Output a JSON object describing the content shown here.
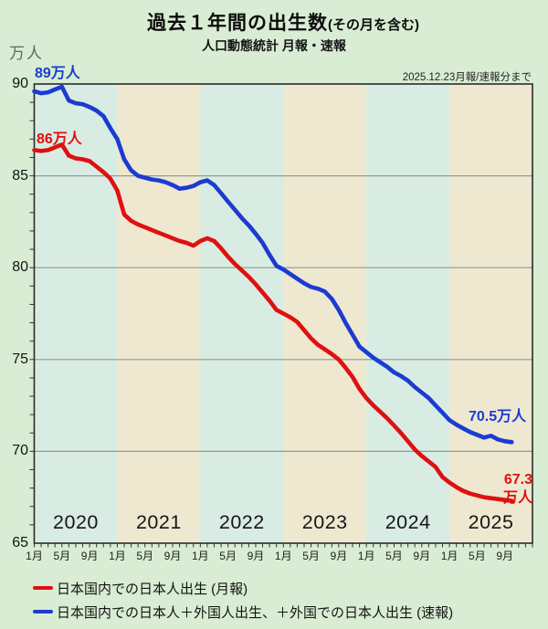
{
  "header": {
    "title_main": "過去１年間の出生数",
    "title_paren": "(その月を含む)",
    "subtitle": "人口動態統計 月報・速報",
    "note_date": "2025.12.23月報/速報分まで",
    "attribution": "作図：小坂純一@kosajun1"
  },
  "y_axis": {
    "unit_label": "万人"
  },
  "annotations": {
    "blue_start": "89万人",
    "red_start": "86万人",
    "blue_end": "70.5万人",
    "red_end_value": "67.3",
    "red_end_unit": "万人"
  },
  "legend": {
    "items": [
      {
        "label": "日本国内での日本人出生 (月報)",
        "color": "#e01010"
      },
      {
        "label": "日本国内での日本人＋外国人出生、＋外国での日本人出生 (速報)",
        "color": "#1b3bd1"
      }
    ]
  },
  "colors": {
    "background": "#d8edd3",
    "band_teal": "#d9ece3",
    "band_beige": "#efe8d1",
    "gridline": "#8f9a93",
    "frame": "#2b2b2b",
    "tick": "#333333",
    "red_line": "#e01010",
    "blue_line": "#1b3bd1"
  },
  "chart_data": {
    "type": "line",
    "title": "過去１年間の出生数(その月を含む)",
    "subtitle": "人口動態統計 月報・速報",
    "y_unit": "万人",
    "ylim": [
      65,
      90
    ],
    "y_tick_labels": [
      90,
      85,
      80,
      75,
      70,
      65
    ],
    "y_gridlines": [
      85,
      80,
      75,
      70
    ],
    "x_start": "2020-01",
    "x_end": "2025-10",
    "x_unit": "month",
    "years": [
      "2020",
      "2021",
      "2022",
      "2023",
      "2024",
      "2025"
    ],
    "month_tick_labels": [
      "1月",
      "5月",
      "9月"
    ],
    "month_tick_offsets": [
      0,
      4,
      8
    ],
    "band_colors_by_year": [
      "teal",
      "beige",
      "teal",
      "beige",
      "teal",
      "beige"
    ],
    "legend_position": "bottom-left",
    "series": [
      {
        "name": "日本国内での日本人出生 (月報)",
        "color": "#e01010",
        "start_label": "86万人",
        "end_label": "67.3万人",
        "values": [
          86.4,
          86.35,
          86.4,
          86.55,
          86.7,
          86.1,
          85.95,
          85.9,
          85.8,
          85.5,
          85.2,
          84.85,
          84.2,
          82.9,
          82.55,
          82.35,
          82.2,
          82.05,
          81.9,
          81.75,
          81.6,
          81.45,
          81.35,
          81.2,
          81.45,
          81.6,
          81.45,
          81.05,
          80.6,
          80.2,
          79.85,
          79.5,
          79.1,
          78.65,
          78.2,
          77.7,
          77.5,
          77.3,
          77.05,
          76.6,
          76.15,
          75.8,
          75.55,
          75.3,
          75.0,
          74.55,
          74.05,
          73.4,
          72.9,
          72.5,
          72.15,
          71.8,
          71.4,
          71.0,
          70.55,
          70.1,
          69.75,
          69.45,
          69.15,
          68.6,
          68.3,
          68.05,
          67.85,
          67.7,
          67.6,
          67.5,
          67.45,
          67.4,
          67.35,
          67.3
        ]
      },
      {
        "name": "日本国内での日本人＋外国人出生、＋外国での日本人出生 (速報)",
        "color": "#1b3bd1",
        "start_label": "89万人",
        "end_label": "70.5万人",
        "values": [
          89.6,
          89.5,
          89.55,
          89.7,
          89.85,
          89.1,
          88.95,
          88.9,
          88.75,
          88.55,
          88.25,
          87.6,
          87.0,
          85.9,
          85.3,
          85.0,
          84.9,
          84.8,
          84.75,
          84.65,
          84.5,
          84.3,
          84.35,
          84.45,
          84.65,
          84.75,
          84.5,
          84.05,
          83.6,
          83.15,
          82.7,
          82.3,
          81.85,
          81.35,
          80.7,
          80.1,
          79.9,
          79.65,
          79.4,
          79.15,
          78.95,
          78.85,
          78.7,
          78.3,
          77.7,
          77.0,
          76.35,
          75.7,
          75.4,
          75.1,
          74.85,
          74.6,
          74.3,
          74.1,
          73.85,
          73.5,
          73.2,
          72.9,
          72.5,
          72.1,
          71.7,
          71.45,
          71.25,
          71.05,
          70.9,
          70.75,
          70.85,
          70.65,
          70.55,
          70.5
        ]
      }
    ]
  }
}
